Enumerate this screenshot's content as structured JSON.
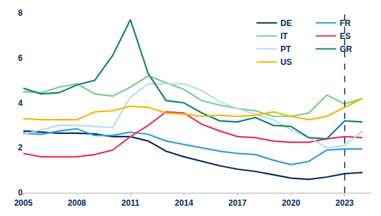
{
  "chart_data": {
    "type": "line",
    "x": [
      2005,
      2006,
      2007,
      2008,
      2009,
      2010,
      2011,
      2012,
      2013,
      2014,
      2015,
      2016,
      2017,
      2018,
      2019,
      2020,
      2021,
      2022,
      2023,
      2024
    ],
    "series": [
      {
        "name": "DE",
        "color": "#0b2a5b",
        "values": [
          2.75,
          2.7,
          2.65,
          2.65,
          2.62,
          2.5,
          2.5,
          2.3,
          1.85,
          1.6,
          1.4,
          1.2,
          1.05,
          0.95,
          0.8,
          0.65,
          0.6,
          0.7,
          0.85,
          0.9
        ]
      },
      {
        "name": "FR",
        "color": "#2a9fd6",
        "values": [
          2.65,
          2.6,
          2.75,
          2.85,
          2.55,
          2.55,
          2.7,
          2.6,
          2.3,
          2.15,
          2.0,
          1.85,
          1.75,
          1.7,
          1.45,
          1.25,
          1.4,
          1.9,
          1.95,
          1.95
        ]
      },
      {
        "name": "IT",
        "color": "#6fcf8a",
        "values": [
          4.5,
          4.45,
          4.7,
          4.85,
          4.4,
          4.3,
          4.7,
          5.2,
          4.9,
          4.6,
          4.1,
          3.9,
          3.75,
          3.65,
          3.4,
          3.4,
          3.55,
          4.35,
          3.95,
          4.2
        ]
      },
      {
        "name": "ES",
        "color": "#e8305a",
        "values": [
          1.75,
          1.6,
          1.6,
          1.6,
          1.7,
          1.9,
          2.5,
          3.0,
          3.6,
          3.55,
          3.05,
          2.75,
          2.5,
          2.45,
          2.3,
          2.25,
          2.25,
          2.4,
          2.5,
          2.45
        ]
      },
      {
        "name": "PT",
        "color": "#b8dcea",
        "values": [
          2.6,
          2.8,
          3.0,
          3.0,
          2.95,
          2.9,
          4.25,
          4.85,
          4.85,
          4.85,
          4.55,
          4.05,
          3.75,
          3.5,
          3.25,
          2.8,
          2.45,
          2.0,
          2.1,
          2.75
        ]
      },
      {
        "name": "GR",
        "color": "#137e7a",
        "values": [
          4.65,
          4.4,
          4.45,
          4.8,
          5.0,
          6.1,
          7.7,
          5.3,
          4.1,
          4.0,
          3.55,
          3.2,
          3.15,
          3.35,
          3.0,
          2.95,
          2.45,
          2.4,
          3.2,
          3.15
        ]
      },
      {
        "name": "US",
        "color": "#f7b500",
        "values": [
          3.3,
          3.25,
          3.25,
          3.25,
          3.6,
          3.65,
          3.85,
          3.8,
          3.55,
          3.5,
          3.4,
          3.45,
          3.4,
          3.45,
          3.6,
          3.4,
          3.25,
          3.4,
          3.8,
          4.2
        ]
      }
    ],
    "xlim": [
      2005,
      2024.5
    ],
    "xticks": [
      2005,
      2008,
      2011,
      2014,
      2017,
      2020,
      2023
    ],
    "ylim": [
      0,
      8
    ],
    "yticks": [
      0,
      2,
      4,
      6,
      8
    ],
    "vline": 2023,
    "grid": false,
    "legend": "upper right"
  }
}
